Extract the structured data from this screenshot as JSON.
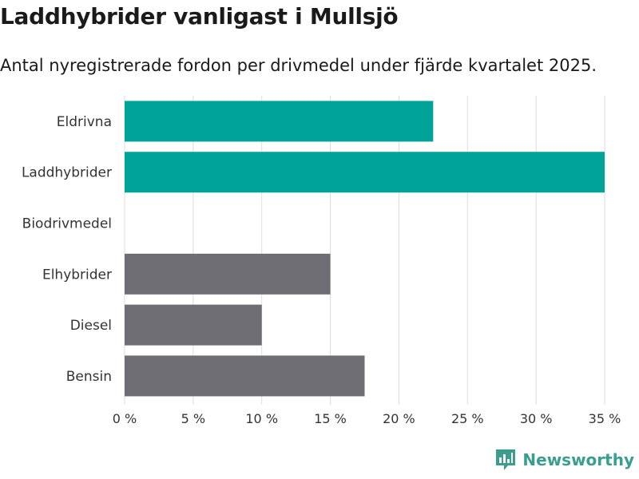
{
  "header": {
    "title": "Laddhybrider vanligast i Mullsjö",
    "subtitle": "Antal nyregistrerade fordon per drivmedel under fjärde kvartalet 2025."
  },
  "brand": {
    "name": "Newsworthy"
  },
  "colors": {
    "highlight": "#00a398",
    "default": "#6e6d73",
    "grid": "#dcdcdc"
  },
  "chart_data": {
    "type": "bar",
    "orientation": "horizontal",
    "categories": [
      "Eldrivna",
      "Laddhybrider",
      "Biodrivmedel",
      "Elhybrider",
      "Diesel",
      "Bensin"
    ],
    "values": [
      22.5,
      35,
      0,
      15,
      10,
      17.5
    ],
    "highlighted": [
      true,
      true,
      false,
      false,
      false,
      false
    ],
    "xlim": [
      0,
      35
    ],
    "xticks": [
      0,
      5,
      10,
      15,
      20,
      25,
      30,
      35
    ],
    "xtick_labels": [
      "0 %",
      "5 %",
      "10 %",
      "15 %",
      "20 %",
      "25 %",
      "30 %",
      "35 %"
    ],
    "grid": true
  }
}
